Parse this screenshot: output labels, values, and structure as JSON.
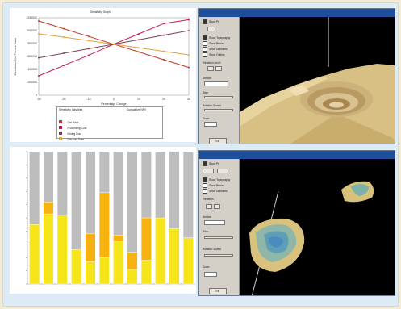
{
  "app": {
    "line_chart_title": "Sensitivity Graph",
    "window_top_title": "3D Visualization Window",
    "window_bottom_title": "3D Visualization Window"
  },
  "line_chart_labels": {
    "ylabel": "Cumulative Net Present Value",
    "xlabel": "Percentage Change",
    "y_ticks": [
      "1200000",
      "1000000",
      "800000",
      "600000",
      "400000",
      "200000",
      "0"
    ],
    "x_ticks": [
      "-30",
      "-20",
      "-10",
      "0",
      "10",
      "20",
      "30"
    ],
    "legend_header_left": "Sensitivity Variables",
    "legend_header_right": "Cumulative NPV",
    "legend_items": [
      {
        "label": "Ore Price",
        "value": "",
        "color": "#c0392b"
      },
      {
        "label": "Processing Cost",
        "value": "",
        "color": "#c2185b"
      },
      {
        "label": "Mining Cost",
        "value": "",
        "color": "#7b3f5a"
      },
      {
        "label": "Discount Rate",
        "value": "",
        "color": "#e6a23c"
      }
    ]
  },
  "side_top": {
    "items": [
      "Show Pit",
      "Show Topography",
      "Show Blocks",
      "Show Drillholes",
      "Show Outline"
    ],
    "level_label": "Elevation Level",
    "section_label": "Section",
    "slice_label": "Slice",
    "speed_label": "Rotation Speed",
    "zoom_label": "Zoom",
    "exit_label": "Exit"
  },
  "side_bottom": {
    "items": [
      "Show Pit",
      "Show Topography",
      "Show Blocks",
      "Show Drillholes"
    ],
    "level_label": "Elevation",
    "section_label": "Section",
    "slice_label": "Slice",
    "speed_label": "Rotation Speed",
    "zoom_label": "Zoom",
    "exit_label": "Exit"
  },
  "chart_data": [
    {
      "type": "line",
      "title": "Sensitivity Graph",
      "xlabel": "Percentage Change",
      "ylabel": "Cumulative Net Present Value",
      "x": [
        -30,
        -20,
        -10,
        0,
        10,
        20,
        30
      ],
      "xlim": [
        -30,
        30
      ],
      "ylim": [
        0,
        1200000
      ],
      "grid": false,
      "legend_position": "bottom",
      "series": [
        {
          "name": "Ore Price",
          "color": "#c0392b",
          "values": [
            1150000,
            1030000,
            910000,
            790000,
            670000,
            550000,
            430000
          ]
        },
        {
          "name": "Processing Cost",
          "color": "#c2185b",
          "values": [
            300000,
            460000,
            620000,
            790000,
            950000,
            1110000,
            1170000
          ]
        },
        {
          "name": "Mining Cost",
          "color": "#7b3f5a",
          "values": [
            580000,
            650000,
            720000,
            790000,
            860000,
            930000,
            1000000
          ]
        },
        {
          "name": "Discount Rate",
          "color": "#e6a23c",
          "values": [
            950000,
            900000,
            845000,
            790000,
            735000,
            680000,
            625000
          ]
        }
      ]
    },
    {
      "type": "bar",
      "stacked": true,
      "categories": [
        "1",
        "2",
        "3",
        "4",
        "5",
        "6",
        "7",
        "8",
        "9",
        "10",
        "11",
        "12"
      ],
      "ylim": [
        0,
        100
      ],
      "grid": false,
      "series": [
        {
          "color": "#f6e51a",
          "values": [
            45,
            53,
            52,
            26,
            17,
            20,
            32,
            11,
            18,
            50,
            42,
            35
          ]
        },
        {
          "color": "#f6b30f",
          "values": [
            0,
            9,
            0,
            0,
            21,
            49,
            5,
            13,
            32,
            0,
            0,
            0
          ]
        },
        {
          "color": "#bdbdbd",
          "values": [
            55,
            38,
            48,
            74,
            62,
            31,
            63,
            76,
            50,
            50,
            58,
            65
          ]
        }
      ]
    }
  ]
}
